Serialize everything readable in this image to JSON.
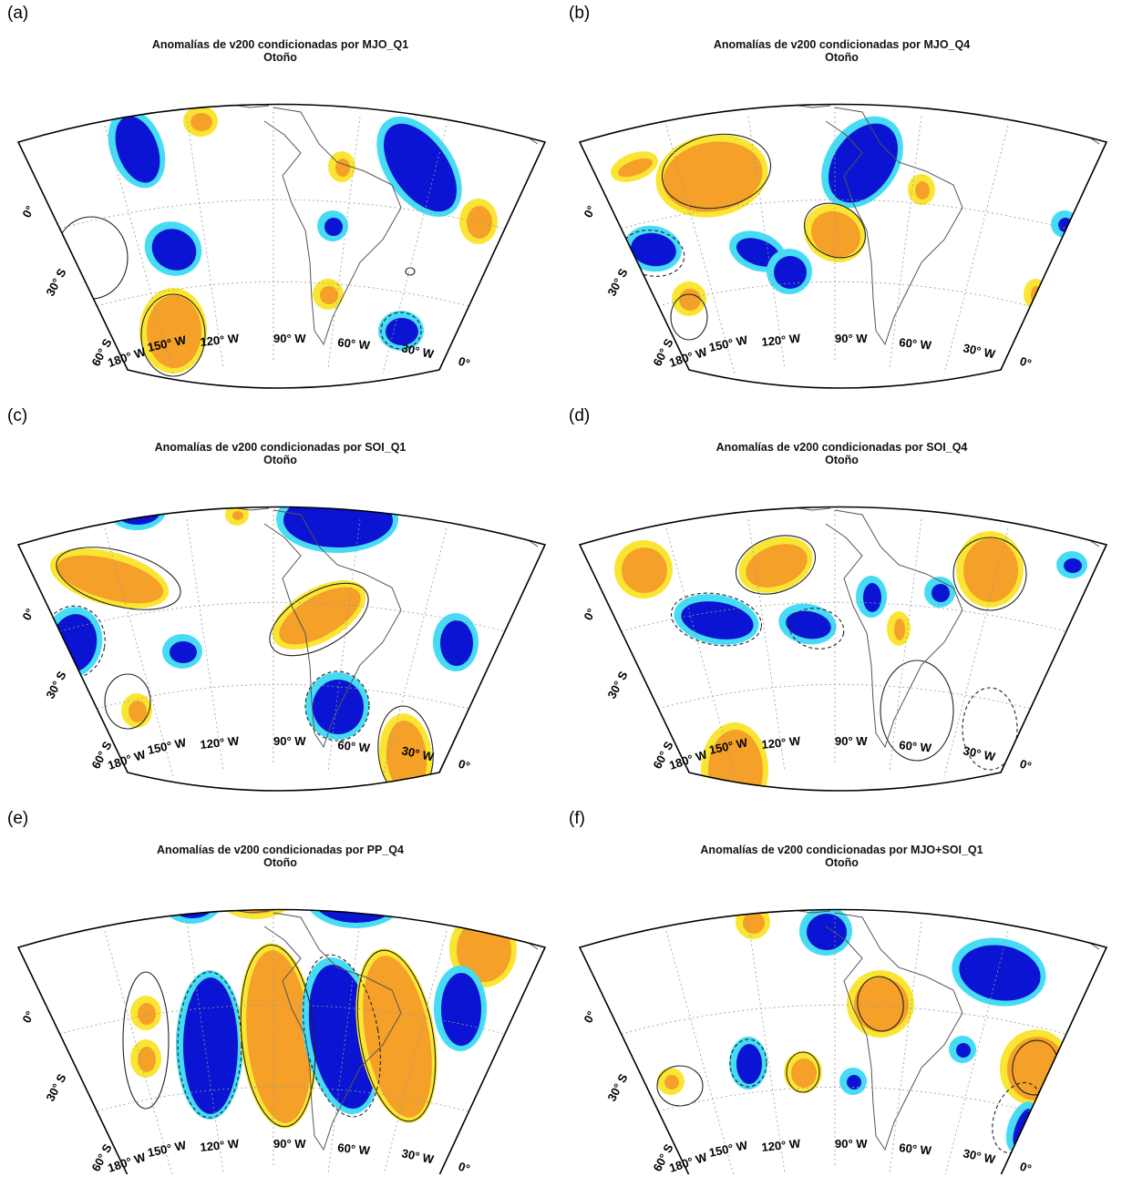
{
  "colors": {
    "strong_negative": "#0a14d2",
    "weak_negative": "#46dcf5",
    "strong_positive": "#f5a028",
    "weak_positive": "#fae632"
  },
  "common": {
    "season": "Otoño",
    "lon_labels": [
      "180° W",
      "150° W",
      "120° W",
      "90° W",
      "60° W",
      "30° W",
      "0°"
    ],
    "lat_labels": [
      "0°",
      "30° S",
      "60° S"
    ]
  },
  "panels": [
    {
      "label": "(a)",
      "title": "Anomalías de v200 condicionadas por MJO_Q1",
      "subtitle": "Otoño"
    },
    {
      "label": "(b)",
      "title": "Anomalías de v200 condicionadas por MJO_Q4",
      "subtitle": "Otoño"
    },
    {
      "label": "(c)",
      "title": "Anomalías de v200 condicionadas por SOI_Q1",
      "subtitle": "Otoño"
    },
    {
      "label": "(d)",
      "title": "Anomalías de v200 condicionadas por SOI_Q4",
      "subtitle": "Otoño"
    },
    {
      "label": "(e)",
      "title": "Anomalías de v200 condicionadas por PP_Q4",
      "subtitle": "Otoño"
    },
    {
      "label": "(f)",
      "title": "Anomalías de v200 condicionadas por MJO+SOI_Q1",
      "subtitle": "Otoño"
    }
  ]
}
